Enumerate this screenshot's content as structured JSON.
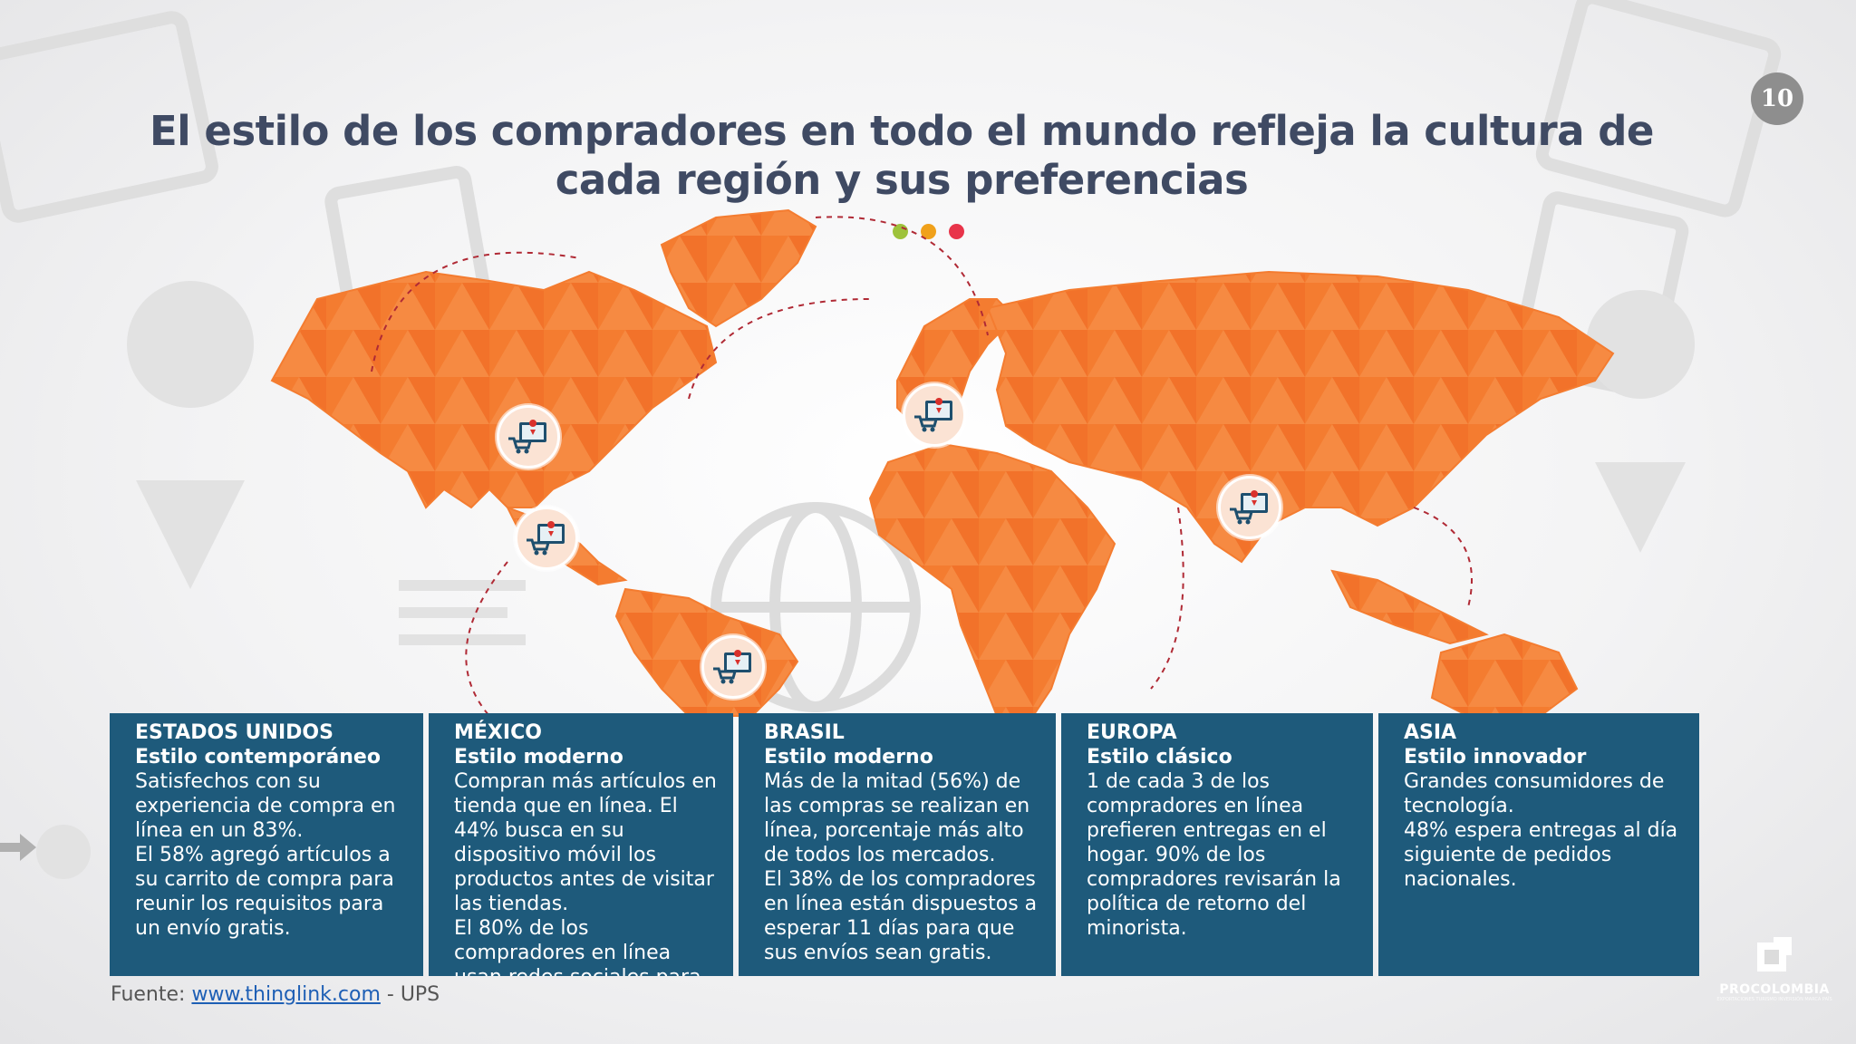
{
  "slide_number": "10",
  "title": "El estilo de los compradores en todo el mundo refleja la cultura de cada región y sus preferencias",
  "colors": {
    "map_orange": "#f47c30",
    "card_blue": "#1e5a7b",
    "title_color": "#3f4a63",
    "dot_green": "#9ec23b",
    "dot_orange": "#f0a11b",
    "dot_red": "#e8344a"
  },
  "regions": [
    {
      "name": "ESTADOS UNIDOS",
      "style": "Estilo contemporáneo",
      "description": "Satisfechos con su experiencia de compra en línea en un 83%.\nEl 58% agregó artículos a su carrito de compra para reunir los requisitos para un envío gratis."
    },
    {
      "name": "MÉXICO",
      "style": "Estilo moderno",
      "description": "Compran más artículos en tienda que en línea. El 44% busca en su dispositivo móvil los productos antes de visitar las tiendas.\nEl 80% de los compradores en línea usan redes sociales para tomar la decisión."
    },
    {
      "name": "BRASIL",
      "style": "Estilo moderno",
      "description": "Más de la mitad (56%) de las compras se realizan en línea, porcentaje más alto de todos los mercados.\nEl 38% de los compradores en línea están dispuestos a esperar 11 días para que sus envíos sean gratis."
    },
    {
      "name": "EUROPA",
      "style": "Estilo clásico",
      "description": "1 de cada 3 de los compradores en línea prefieren entregas  en el hogar. 90% de los compradores revisarán la política de retorno del minorista."
    },
    {
      "name": "ASIA",
      "style": "Estilo innovador",
      "description": "Grandes consumidores de tecnología.\n48% espera entregas al día siguiente de pedidos nacionales."
    }
  ],
  "source": {
    "prefix": "Fuente: ",
    "link_text": "www.thinglink.com",
    "suffix": " - UPS"
  },
  "logo": {
    "name": "PROCOLOMBIA",
    "tagline": "EXPORTACIONES TURISMO INVERSIÓN MARCA PAÍS"
  },
  "markers": [
    "ecommerce-pin-icon",
    "ecommerce-pin-icon",
    "ecommerce-pin-icon",
    "ecommerce-pin-icon",
    "ecommerce-pin-icon"
  ]
}
